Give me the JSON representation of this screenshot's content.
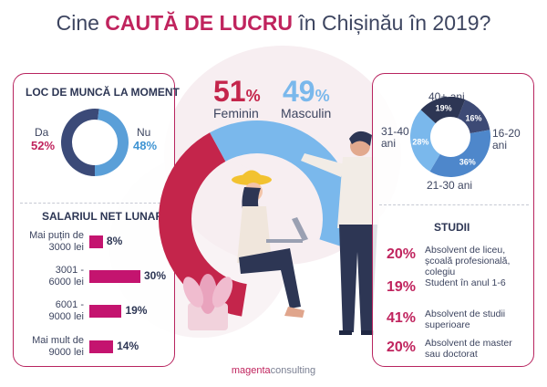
{
  "title": {
    "prefix": "Cine",
    "highlight": "CAUTĂ DE LUCRU",
    "suffix": "în Chișinău în 2019?"
  },
  "colors": {
    "accent": "#c0245e",
    "navy": "#2d3654",
    "blue": "#5a9fd8",
    "light_blue": "#8fc3ee",
    "magenta_bar": "#c4146f"
  },
  "chart_data": [
    {
      "id": "employment",
      "type": "pie",
      "title": "LOC DE MUNCĂ LA MOMENT",
      "slices": [
        {
          "label": "Da",
          "value": 52,
          "value_label": "52%",
          "color": "#3b4a78"
        },
        {
          "label": "Nu",
          "value": 48,
          "value_label": "48%",
          "color": "#5a9fd8"
        }
      ]
    },
    {
      "id": "gender",
      "type": "pie",
      "slices": [
        {
          "label": "Feminin",
          "value": 51,
          "value_label": "51",
          "color": "#c4254b"
        },
        {
          "label": "Masculin",
          "value": 49,
          "value_label": "49",
          "color": "#7ab8ec"
        }
      ],
      "percent_sign": "%"
    },
    {
      "id": "age",
      "type": "pie",
      "slices": [
        {
          "label": "16-20 ani",
          "value": 16,
          "value_label": "16%",
          "color": "#3d4a75"
        },
        {
          "label": "21-30 ani",
          "value": 36,
          "value_label": "36%",
          "color": "#4e87cb"
        },
        {
          "label": "31-40 ani",
          "value": 28,
          "value_label": "28%",
          "color": "#7ab8ec"
        },
        {
          "label": "40+ ani",
          "value": 19,
          "value_label": "19%",
          "color": "#2d3654"
        }
      ]
    },
    {
      "id": "salary",
      "type": "bar",
      "title": "SALARIUL NET LUNAR",
      "categories": [
        "Mai puțin de\n3000 lei",
        "3001 -\n6000 lei",
        "6001 -\n9000 lei",
        "Mai mult de\n9000 lei"
      ],
      "values": [
        8,
        30,
        19,
        14
      ],
      "value_labels": [
        "8%",
        "30%",
        "19%",
        "14%"
      ],
      "max": 30
    },
    {
      "id": "education",
      "type": "table",
      "title": "STUDII",
      "rows": [
        {
          "value": 20,
          "value_label": "20%",
          "label": "Absolvent de liceu,\nșcoală profesională,\ncolegiu"
        },
        {
          "value": 19,
          "value_label": "19%",
          "label": "Student în anul 1-6"
        },
        {
          "value": 41,
          "value_label": "41%",
          "label": "Absolvent de studii\nsuperioare"
        },
        {
          "value": 20,
          "value_label": "20%",
          "label": "Absolvent de master\nsau doctorat"
        }
      ]
    }
  ],
  "brand": {
    "part1": "magenta",
    "part2": "consulting"
  }
}
